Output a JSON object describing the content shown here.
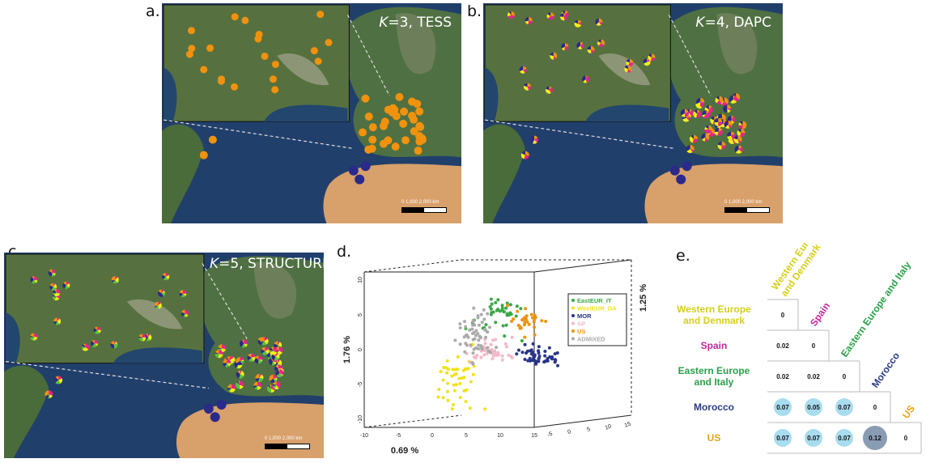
{
  "panels": {
    "a": {
      "label": "a.",
      "k_value": "3",
      "method": "TESS",
      "scale_text": "0 1,000 2,000 km",
      "colors": [
        "#f0920e"
      ]
    },
    "b": {
      "label": "b.",
      "k_value": "4",
      "method": "DAPC",
      "scale_text": "0 1,000 2,000 km",
      "colors": [
        "#f0920e",
        "#e8238d",
        "#f2ee18",
        "#2a2a8a"
      ]
    },
    "c": {
      "label": "c.",
      "k_value": "5",
      "method": "STRUCTURE",
      "scale_text": "0 1,000 2,000 km",
      "colors": [
        "#e8238d",
        "#f2ee18",
        "#58c43a",
        "#2a2a8a",
        "#f0920e"
      ]
    },
    "d": {
      "label": "d."
    },
    "e": {
      "label": "e."
    }
  },
  "k_prefix": "K",
  "k_eq": "=",
  "chart_data": {
    "type": "scatter",
    "title": "",
    "xlabel": "0.69 %",
    "ylabel": "1.76 %",
    "zlabel": "1.25 %",
    "x_ticks": [
      "-10",
      "-5",
      "0",
      "5",
      "10",
      "15"
    ],
    "y_ticks": [
      "-10",
      "-5",
      "0",
      "5",
      "10"
    ],
    "z_ticks": [
      "-5",
      "0",
      "5",
      "10",
      "15"
    ],
    "xlim": [
      -10,
      15
    ],
    "ylim": [
      -10,
      10
    ],
    "legend_position": "right",
    "series": [
      {
        "name": "EastEUR_IT",
        "color": "#3aa845"
      },
      {
        "name": "WestEUR_DA",
        "color": "#f2e21a"
      },
      {
        "name": "MOR",
        "color": "#27348b"
      },
      {
        "name": "SP",
        "color": "#f4b8c8"
      },
      {
        "name": "US",
        "color": "#f0920e"
      },
      {
        "name": "ADMIXED",
        "color": "#aaaaaa"
      }
    ]
  },
  "fst": {
    "populations": [
      {
        "name_lines": [
          "Western Europe",
          "and Denmark"
        ],
        "color": "#d6cf1a"
      },
      {
        "name_lines": [
          "Spain"
        ],
        "color": "#c02a9a"
      },
      {
        "name_lines": [
          "Eastern Europe",
          "and Italy"
        ],
        "color": "#2aa04a"
      },
      {
        "name_lines": [
          "Morocco"
        ],
        "color": "#2c3a8c"
      },
      {
        "name_lines": [
          "US"
        ],
        "color": "#e8a21a"
      }
    ],
    "diag_labels": [
      "Western Europe and Denmark",
      "Spain",
      "Eastern Europe and Italy",
      "Morocco",
      "US"
    ],
    "rows": [
      [
        "0"
      ],
      [
        "0.02",
        "0"
      ],
      [
        "0.02",
        "0.02",
        "0"
      ],
      [
        "0.07",
        "0.05",
        "0.07",
        "0"
      ],
      [
        "0.07",
        "0.07",
        "0.07",
        "0.12",
        "0"
      ]
    ]
  }
}
